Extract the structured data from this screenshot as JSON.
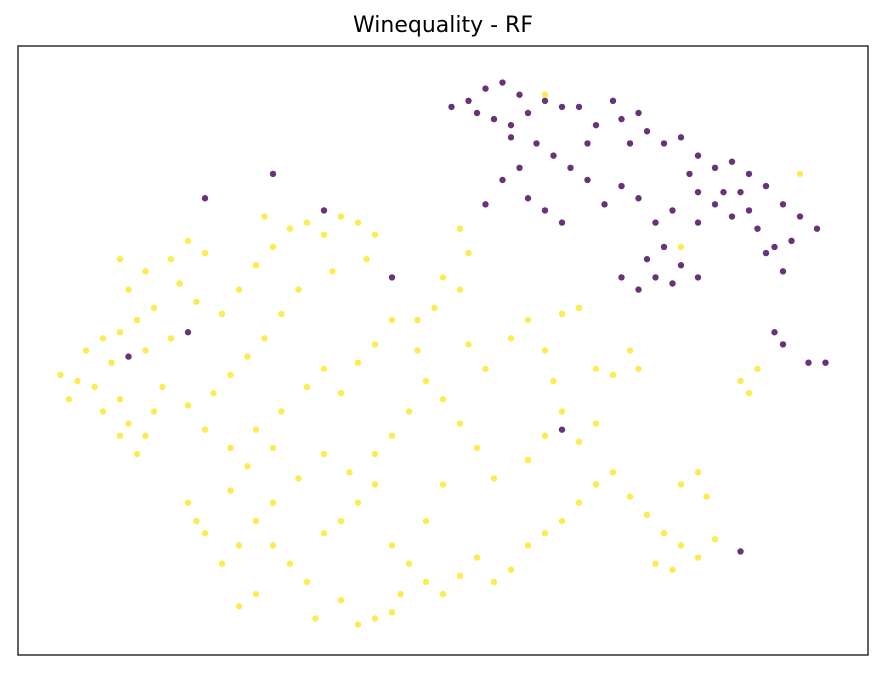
{
  "chart_data": {
    "type": "scatter",
    "title": "Winequality - RF",
    "xlim": [
      0,
      100
    ],
    "ylim": [
      0,
      100
    ],
    "point_radius": 3.2,
    "opacity": 0.8,
    "series": [
      {
        "color": "#440154",
        "x": [
          51,
          53,
          55,
          57,
          59,
          60,
          58,
          56,
          54,
          62,
          64,
          66,
          68,
          70,
          71,
          73,
          72,
          74,
          76,
          78,
          80,
          79,
          82,
          84,
          86,
          85,
          88,
          90,
          92,
          94,
          91,
          89,
          87,
          84,
          82,
          80,
          77,
          75,
          73,
          71,
          69,
          67,
          65,
          63,
          61,
          59,
          57,
          60,
          62,
          64,
          74,
          76,
          78,
          80,
          77,
          75,
          73,
          71,
          80,
          88,
          90,
          89,
          90,
          93,
          95,
          55,
          58,
          67,
          83,
          86,
          22,
          30,
          36,
          44,
          13,
          20,
          64,
          85
        ],
        "y": [
          90,
          91,
          93,
          94,
          92,
          89,
          87,
          88,
          89,
          91,
          90,
          90,
          87,
          91,
          88,
          89,
          84,
          86,
          84,
          85,
          82,
          79,
          80,
          81,
          79,
          76,
          77,
          74,
          72,
          70,
          68,
          67,
          70,
          72,
          74,
          71,
          73,
          71,
          75,
          77,
          74,
          78,
          80,
          82,
          84,
          80,
          78,
          75,
          73,
          71,
          65,
          67,
          64,
          62,
          61,
          62,
          60,
          62,
          76,
          66,
          63,
          53,
          51,
          48,
          48,
          74,
          85,
          84,
          76,
          73,
          75,
          79,
          73,
          62,
          49,
          53,
          37,
          17
        ]
      },
      {
        "color": "#fde725",
        "x": [
          5,
          7,
          6,
          8,
          10,
          12,
          11,
          9,
          12,
          13,
          15,
          14,
          12,
          10,
          16,
          17,
          15,
          18,
          14,
          16,
          13,
          15,
          12,
          18,
          20,
          22,
          19,
          21,
          24,
          26,
          28,
          30,
          29,
          32,
          34,
          36,
          38,
          40,
          42,
          41,
          37,
          33,
          31,
          29,
          27,
          25,
          23,
          20,
          22,
          25,
          27,
          28,
          31,
          34,
          36,
          38,
          40,
          42,
          44,
          47,
          49,
          50,
          52,
          53,
          55,
          58,
          60,
          62,
          64,
          66,
          63,
          68,
          70,
          72,
          73,
          85,
          87,
          86,
          48,
          46,
          44,
          42,
          39,
          36,
          33,
          30,
          28,
          26,
          24,
          21,
          20,
          22,
          30,
          32,
          34,
          36,
          38,
          40,
          42,
          44,
          46,
          48,
          50,
          52,
          54,
          56,
          58,
          60,
          62,
          64,
          66,
          68,
          70,
          72,
          74,
          76,
          78,
          80,
          82,
          81,
          80,
          78,
          75,
          77,
          66,
          68,
          64,
          62,
          60,
          56,
          54,
          52,
          50,
          47,
          53,
          52,
          45,
          42,
          44,
          40,
          38,
          35,
          28,
          26,
          30,
          25,
          50,
          48,
          62,
          92,
          78
        ],
        "y": [
          46,
          45,
          42,
          50,
          52,
          53,
          48,
          44,
          42,
          38,
          36,
          33,
          36,
          40,
          40,
          44,
          50,
          52,
          55,
          57,
          60,
          63,
          65,
          65,
          68,
          66,
          61,
          58,
          56,
          60,
          64,
          67,
          72,
          70,
          71,
          69,
          72,
          71,
          69,
          65,
          63,
          60,
          56,
          52,
          49,
          46,
          43,
          41,
          37,
          34,
          31,
          37,
          40,
          44,
          47,
          43,
          48,
          51,
          55,
          55,
          57,
          62,
          60,
          51,
          47,
          52,
          55,
          50,
          56,
          57,
          45,
          47,
          46,
          50,
          47,
          45,
          47,
          43,
          45,
          40,
          36,
          33,
          30,
          33,
          29,
          25,
          22,
          18,
          15,
          22,
          25,
          20,
          18,
          15,
          12,
          20,
          22,
          25,
          28,
          18,
          15,
          12,
          10,
          13,
          16,
          12,
          14,
          18,
          20,
          22,
          25,
          28,
          30,
          26,
          23,
          20,
          18,
          16,
          19,
          26,
          30,
          28,
          15,
          14,
          35,
          38,
          40,
          36,
          32,
          29,
          34,
          38,
          42,
          50,
          66,
          70,
          10,
          6,
          7,
          5,
          9,
          6,
          10,
          8,
          34,
          27,
          28,
          22,
          92,
          79,
          67
        ]
      }
    ]
  }
}
